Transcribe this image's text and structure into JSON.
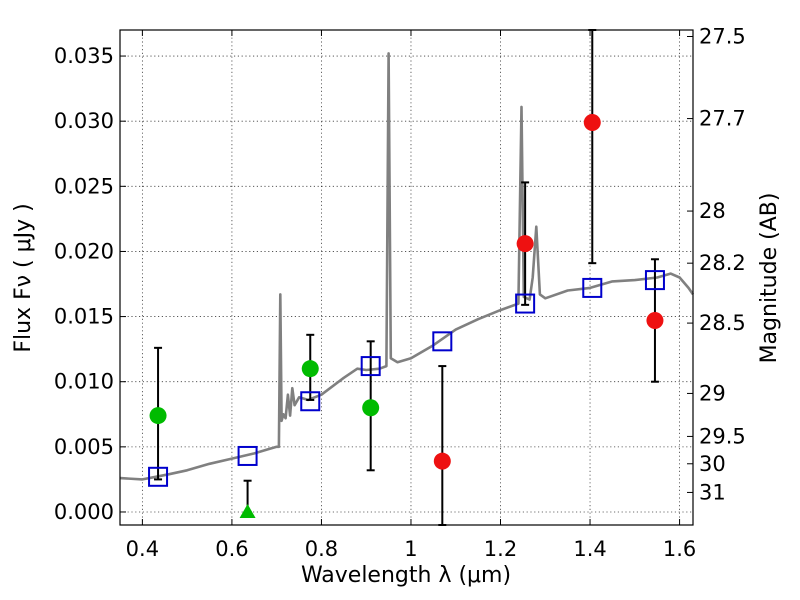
{
  "chart_data": {
    "type": "scatter",
    "xlabel": "Wavelength  λ (μm)",
    "ylabel": "Flux  Fν  ( μJy )",
    "ylabel_right": "Magnitude (AB)",
    "xlim": [
      0.35,
      1.63
    ],
    "ylim": [
      -0.001,
      0.037
    ],
    "x_ticks": [
      0.4,
      0.6,
      0.8,
      1.0,
      1.2,
      1.4,
      1.6
    ],
    "x_tick_labels": [
      "0.4",
      "0.6",
      "0.8",
      "1",
      "1.2",
      "1.4",
      "1.6"
    ],
    "y_ticks": [
      0.0,
      0.005,
      0.01,
      0.015,
      0.02,
      0.025,
      0.03,
      0.035
    ],
    "y_tick_labels": [
      "0.000",
      "0.005",
      "0.010",
      "0.015",
      "0.020",
      "0.025",
      "0.030",
      "0.035"
    ],
    "right_ticks": [
      {
        "label": "27.5",
        "flux": 0.0365
      },
      {
        "label": "27.7",
        "flux": 0.0302
      },
      {
        "label": "28",
        "flux": 0.0231
      },
      {
        "label": "28.2",
        "flux": 0.0191
      },
      {
        "label": "28.5",
        "flux": 0.0145
      },
      {
        "label": "29",
        "flux": 0.0091
      },
      {
        "label": "29.5",
        "flux": 0.0058
      },
      {
        "label": "30",
        "flux": 0.0037
      },
      {
        "label": "31",
        "flux": 0.0015
      }
    ],
    "grid": true,
    "colors": {
      "spectrum": "#808080",
      "model": "#0000cc",
      "detection": "#00bb00",
      "upper": "#ee1111",
      "errorbar": "#000000"
    },
    "series": [
      {
        "kind": "line",
        "points": [
          [
            0.35,
            0.0026
          ],
          [
            0.4,
            0.0025
          ],
          [
            0.43,
            0.0027
          ],
          [
            0.46,
            0.0029
          ],
          [
            0.5,
            0.0032
          ],
          [
            0.55,
            0.0037
          ],
          [
            0.6,
            0.0041
          ],
          [
            0.65,
            0.0045
          ],
          [
            0.68,
            0.0048
          ],
          [
            0.7,
            0.005
          ],
          [
            0.705,
            0.005
          ],
          [
            0.708,
            0.0167
          ],
          [
            0.711,
            0.007
          ],
          [
            0.715,
            0.0075
          ],
          [
            0.72,
            0.0072
          ],
          [
            0.725,
            0.009
          ],
          [
            0.73,
            0.0074
          ],
          [
            0.735,
            0.0095
          ],
          [
            0.74,
            0.0082
          ],
          [
            0.75,
            0.0088
          ],
          [
            0.77,
            0.0086
          ],
          [
            0.8,
            0.009
          ],
          [
            0.85,
            0.0103
          ],
          [
            0.88,
            0.011
          ],
          [
            0.9,
            0.0109
          ],
          [
            0.93,
            0.011
          ],
          [
            0.945,
            0.0112
          ],
          [
            0.95,
            0.0352
          ],
          [
            0.955,
            0.0118
          ],
          [
            0.97,
            0.0115
          ],
          [
            1.0,
            0.0118
          ],
          [
            1.05,
            0.0128
          ],
          [
            1.1,
            0.014
          ],
          [
            1.15,
            0.0148
          ],
          [
            1.2,
            0.0155
          ],
          [
            1.24,
            0.016
          ],
          [
            1.247,
            0.0311
          ],
          [
            1.252,
            0.0165
          ],
          [
            1.265,
            0.0163
          ],
          [
            1.272,
            0.018
          ],
          [
            1.28,
            0.0219
          ],
          [
            1.288,
            0.0167
          ],
          [
            1.3,
            0.0164
          ],
          [
            1.35,
            0.017
          ],
          [
            1.4,
            0.0172
          ],
          [
            1.45,
            0.0177
          ],
          [
            1.5,
            0.0178
          ],
          [
            1.55,
            0.018
          ],
          [
            1.58,
            0.0183
          ],
          [
            1.6,
            0.018
          ],
          [
            1.62,
            0.0172
          ],
          [
            1.63,
            0.0167
          ]
        ]
      },
      {
        "kind": "model-squares",
        "x": [
          0.435,
          0.635,
          0.775,
          0.91,
          1.07,
          1.255,
          1.405,
          1.545
        ],
        "y": [
          0.0027,
          0.0043,
          0.0085,
          0.0112,
          0.0131,
          0.016,
          0.0172,
          0.0178
        ]
      },
      {
        "kind": "detections",
        "x": [
          0.435,
          0.775,
          0.91
        ],
        "y": [
          0.0074,
          0.011,
          0.008
        ],
        "yerr_low": [
          0.0025,
          0.0086,
          0.0032
        ],
        "yerr_high": [
          0.0126,
          0.0136,
          0.0131
        ]
      },
      {
        "kind": "non-detection-triangle",
        "x": [
          0.635
        ],
        "y": [
          0.0
        ],
        "yerr_low": [
          0.0
        ],
        "yerr_high": [
          0.0024
        ]
      },
      {
        "kind": "low-significance",
        "x": [
          1.07,
          1.255,
          1.405,
          1.545
        ],
        "y": [
          0.0039,
          0.0206,
          0.0299,
          0.0147
        ],
        "yerr_low": [
          -0.001,
          0.0159,
          0.0191,
          0.01
        ],
        "yerr_high": [
          0.0112,
          0.0253,
          0.037,
          0.0194
        ]
      }
    ]
  }
}
